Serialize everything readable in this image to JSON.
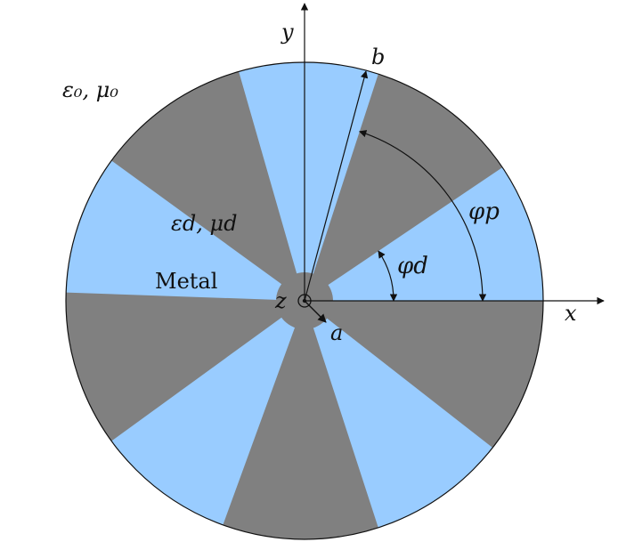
{
  "colors": {
    "dielectric": "#99CCFF",
    "metal": "#808080",
    "outline": "#111111",
    "background": "#FFFFFF"
  },
  "labels": {
    "x_axis": "x",
    "y_axis": "y",
    "z_axis": "z",
    "outer_radius": "b",
    "inner_radius": "a",
    "outer_medium": "ε₀, μ₀",
    "inner_medium": "εd, μd",
    "metal": "Metal",
    "phi_d": "φd",
    "phi_p": "φp"
  },
  "periodic_structure": {
    "dielectric_wedges": 5,
    "period_deg": 72,
    "dielectric_angle_deg": 34
  }
}
